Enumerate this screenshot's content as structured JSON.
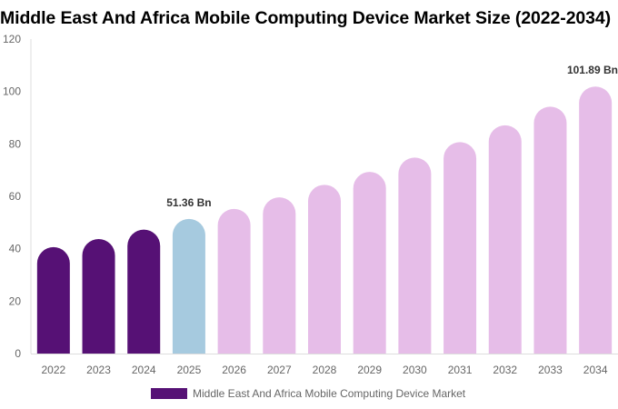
{
  "chart_data": {
    "type": "bar",
    "title": "Middle East And Africa Mobile Computing Device Market Size (2022-2034)",
    "categories": [
      "2022",
      "2023",
      "2024",
      "2025",
      "2026",
      "2027",
      "2028",
      "2029",
      "2030",
      "2031",
      "2032",
      "2033",
      "2034"
    ],
    "series": [
      {
        "name": "Middle East And Africa Mobile Computing Device Market",
        "values": [
          40.6,
          43.7,
          47.3,
          51.36,
          55.2,
          59.6,
          64.4,
          69.3,
          74.8,
          80.7,
          87.1,
          94.2,
          101.89
        ]
      }
    ],
    "data_labels": [
      {
        "category": "2025",
        "text": "51.36 Bn"
      },
      {
        "category": "2034",
        "text": "101.89 Bn"
      }
    ],
    "ylim": [
      0,
      120
    ],
    "yticks": [
      0,
      20,
      40,
      60,
      80,
      100,
      120
    ],
    "xlabel": "",
    "ylabel": "",
    "grid": false,
    "legend_position": "bottom",
    "colors": {
      "historical": "#561175",
      "base_year": "#a6cadf",
      "forecast": "#e6bde8",
      "axis": "#dddddd",
      "tick_text": "#666666",
      "label_text": "#333333"
    },
    "color_groups": [
      "historical",
      "historical",
      "historical",
      "base_year",
      "forecast",
      "forecast",
      "forecast",
      "forecast",
      "forecast",
      "forecast",
      "forecast",
      "forecast",
      "forecast"
    ]
  }
}
